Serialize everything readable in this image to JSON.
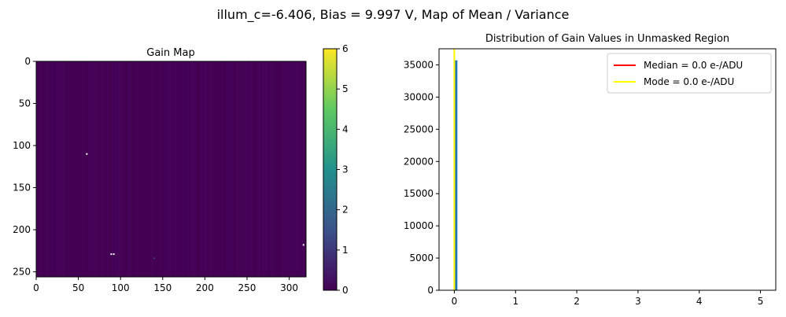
{
  "figure": {
    "suptitle": "illum_c=-6.406, Bias = 9.997 V, Map of Mean / Variance"
  },
  "chart_data": [
    {
      "type": "heatmap",
      "title": "Gain Map",
      "colormap": "viridis",
      "colormap_stops": [
        "#440154",
        "#3b528b",
        "#21918c",
        "#5ec962",
        "#fde725"
      ],
      "background_value": 0,
      "x_range": [
        0,
        320
      ],
      "y_range": [
        0,
        256
      ],
      "y_inverted": true,
      "xticks": [
        0,
        50,
        100,
        150,
        200,
        250,
        300
      ],
      "yticks": [
        0,
        50,
        100,
        150,
        200,
        250
      ],
      "colorbar": {
        "range": [
          0,
          6
        ],
        "ticks": [
          0,
          1,
          2,
          3,
          4,
          5,
          6
        ]
      },
      "hot_pixels": [
        {
          "x": 60,
          "y": 110,
          "value": 6
        },
        {
          "x": 89,
          "y": 229,
          "value": 6
        },
        {
          "x": 92,
          "y": 229,
          "value": 6
        },
        {
          "x": 317,
          "y": 218,
          "value": 6
        },
        {
          "x": 140,
          "y": 234,
          "value": 1
        }
      ]
    },
    {
      "type": "bar",
      "title": "Distribution of Gain Values in Unmasked Region",
      "xlim": [
        -0.25,
        5.25
      ],
      "ylim": [
        0,
        37500
      ],
      "xticks": [
        0,
        1,
        2,
        3,
        4,
        5
      ],
      "yticks": [
        0,
        5000,
        10000,
        15000,
        20000,
        25000,
        30000,
        35000
      ],
      "bars": [
        {
          "x0": 0.0,
          "x1": 0.05,
          "count": 35700
        }
      ],
      "bar_color": "#1f77b4",
      "vlines": [
        {
          "x": 0.0,
          "color": "#ff0000",
          "label": "Median = 0.0 e-/ADU"
        },
        {
          "x": 0.0,
          "color": "#ffff00",
          "label": "Mode = 0.0 e-/ADU"
        }
      ],
      "legend_position": "upper right"
    }
  ]
}
